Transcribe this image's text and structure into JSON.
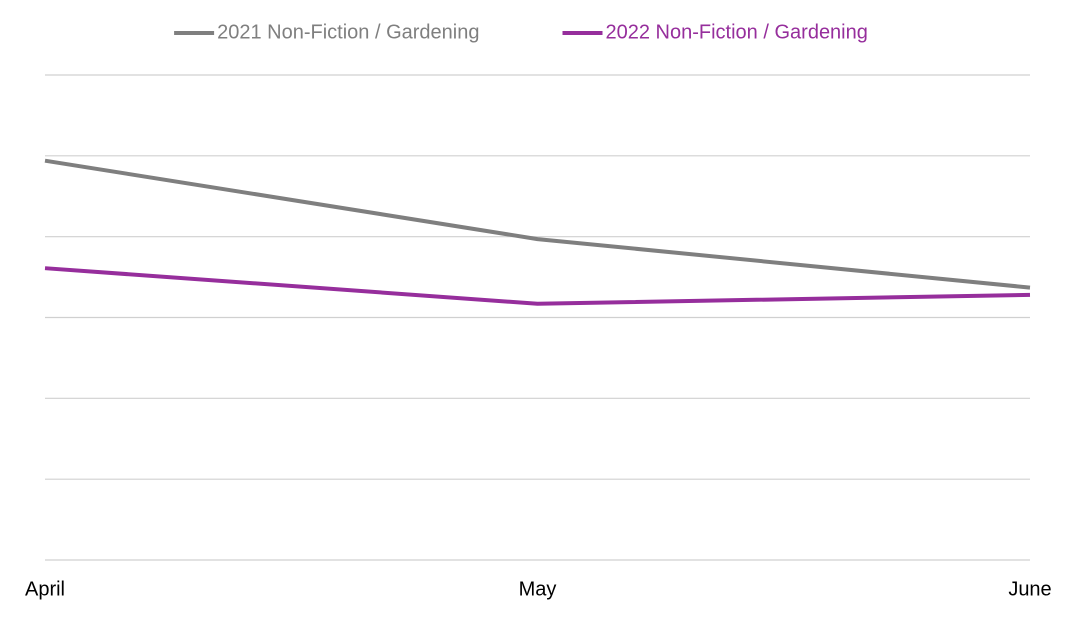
{
  "chart_data": {
    "type": "line",
    "categories": [
      "April",
      "May",
      "June"
    ],
    "series": [
      {
        "name": "2021 Non-Fiction / Gardening",
        "color": "#7f7f7f",
        "values": [
          4.94,
          3.97,
          3.37
        ]
      },
      {
        "name": "2022 Non-Fiction / Gardening",
        "color": "#962e9c",
        "values": [
          3.61,
          3.17,
          3.28
        ]
      }
    ],
    "ylim": [
      0,
      6
    ],
    "yticks": [
      0,
      1,
      2,
      3,
      4,
      5,
      6
    ],
    "grid": true,
    "show_ytick_labels": false,
    "legend": "top"
  }
}
